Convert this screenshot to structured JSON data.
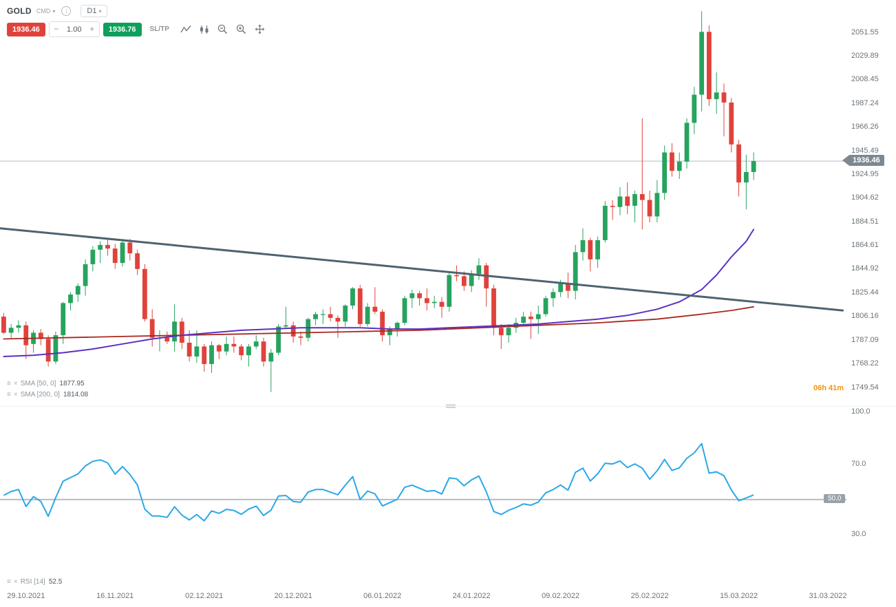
{
  "toolbar": {
    "symbol": "GOLD",
    "market": "CMD",
    "timeframe": "D1",
    "sell_price": "1936.46",
    "buy_price": "1936.76",
    "volume": "1.00",
    "minus": "−",
    "plus": "+",
    "sltp": "SL/TP"
  },
  "legends": {
    "sma50_label": "SMA [50, 0]",
    "sma50_value": "1877.95",
    "sma200_label": "SMA [200, 0]",
    "sma200_value": "1814.08",
    "rsi_label": "RSI [14]",
    "rsi_value": "52.5"
  },
  "countdown": "06h 41m",
  "price_axis": {
    "ticks": [
      "2051.55",
      "2029.89",
      "2008.45",
      "1987.24",
      "1966.26",
      "1945.49",
      "1924.95",
      "1904.62",
      "1884.51",
      "1864.61",
      "1844.92",
      "1825.44",
      "1806.16",
      "1787.09",
      "1768.22",
      "1749.54"
    ],
    "current_price_label": "1936.46"
  },
  "rsi_axis": {
    "ticks": [
      "100.0",
      "70.0",
      "30.0"
    ],
    "mid_badge": "50.0"
  },
  "time_axis": {
    "labels": [
      "29.10.2021",
      "16.11.2021",
      "02.12.2021",
      "20.12.2021",
      "06.01.2022",
      "24.01.2022",
      "09.02.2022",
      "25.02.2022",
      "15.03.2022",
      "31.03.2022"
    ],
    "tick_indices": [
      3,
      15,
      27,
      39,
      51,
      63,
      75,
      87,
      99,
      111
    ]
  },
  "colors": {
    "bull": "#27a35e",
    "bear": "#e0423b",
    "sma50": "#5a31c0",
    "sma200": "#a8271f",
    "trendline": "#4d6370",
    "rsi_line": "#2aa7e8",
    "rsi_mid_line": "#b5bcc1",
    "price_line": "#b4babf",
    "axis_text": "#6a737a",
    "badge_bg": "#7e8890",
    "countdown": "#f5920f"
  },
  "chart_data": {
    "type": "candlestick",
    "symbol": "GOLD",
    "timeframe": "D1",
    "current_price": 1936.46,
    "slots": 114,
    "candles": [
      [
        1806,
        1809,
        1792,
        1793
      ],
      [
        1793,
        1800,
        1788,
        1797
      ],
      [
        1797,
        1803,
        1793,
        1799
      ],
      [
        1799,
        1802,
        1772,
        1783
      ],
      [
        1784,
        1795,
        1777,
        1793
      ],
      [
        1793,
        1796,
        1783,
        1788
      ],
      [
        1788,
        1791,
        1766,
        1770
      ],
      [
        1770,
        1794,
        1768,
        1791
      ],
      [
        1791,
        1818,
        1784,
        1817
      ],
      [
        1817,
        1826,
        1811,
        1824
      ],
      [
        1824,
        1833,
        1818,
        1831
      ],
      [
        1831,
        1853,
        1823,
        1849
      ],
      [
        1849,
        1864,
        1843,
        1861
      ],
      [
        1861,
        1868,
        1850,
        1865
      ],
      [
        1865,
        1870,
        1856,
        1862
      ],
      [
        1862,
        1866,
        1845,
        1850
      ],
      [
        1850,
        1870,
        1847,
        1867
      ],
      [
        1867,
        1870,
        1852,
        1858
      ],
      [
        1858,
        1861,
        1840,
        1845
      ],
      [
        1845,
        1849,
        1802,
        1804
      ],
      [
        1804,
        1812,
        1782,
        1789
      ],
      [
        1789,
        1795,
        1778,
        1789
      ],
      [
        1789,
        1794,
        1784,
        1786
      ],
      [
        1786,
        1816,
        1778,
        1802
      ],
      [
        1802,
        1805,
        1780,
        1785
      ],
      [
        1785,
        1795,
        1770,
        1774
      ],
      [
        1774,
        1795,
        1769,
        1782
      ],
      [
        1782,
        1784,
        1762,
        1768
      ],
      [
        1768,
        1786,
        1761,
        1783
      ],
      [
        1783,
        1784,
        1772,
        1778
      ],
      [
        1778,
        1790,
        1775,
        1784
      ],
      [
        1784,
        1790,
        1777,
        1782
      ],
      [
        1782,
        1784,
        1771,
        1775
      ],
      [
        1775,
        1784,
        1766,
        1782
      ],
      [
        1782,
        1791,
        1780,
        1786
      ],
      [
        1786,
        1789,
        1766,
        1770
      ],
      [
        1770,
        1780,
        1746,
        1777
      ],
      [
        1777,
        1800,
        1775,
        1798
      ],
      [
        1798,
        1814,
        1796,
        1799
      ],
      [
        1799,
        1802,
        1785,
        1790
      ],
      [
        1790,
        1794,
        1783,
        1789
      ],
      [
        1789,
        1805,
        1786,
        1804
      ],
      [
        1804,
        1810,
        1799,
        1808
      ],
      [
        1808,
        1812,
        1800,
        1808
      ],
      [
        1808,
        1814,
        1802,
        1805
      ],
      [
        1805,
        1807,
        1789,
        1802
      ],
      [
        1802,
        1816,
        1798,
        1815
      ],
      [
        1815,
        1830,
        1812,
        1829
      ],
      [
        1829,
        1832,
        1798,
        1800
      ],
      [
        1800,
        1817,
        1798,
        1814
      ],
      [
        1814,
        1830,
        1808,
        1810
      ],
      [
        1810,
        1812,
        1786,
        1791
      ],
      [
        1791,
        1798,
        1783,
        1796
      ],
      [
        1796,
        1802,
        1790,
        1801
      ],
      [
        1801,
        1823,
        1799,
        1821
      ],
      [
        1821,
        1828,
        1813,
        1825
      ],
      [
        1825,
        1827,
        1815,
        1821
      ],
      [
        1821,
        1829,
        1811,
        1817
      ],
      [
        1817,
        1823,
        1813,
        1818
      ],
      [
        1818,
        1822,
        1805,
        1814
      ],
      [
        1814,
        1843,
        1810,
        1840
      ],
      [
        1840,
        1848,
        1835,
        1839
      ],
      [
        1839,
        1843,
        1827,
        1831
      ],
      [
        1831,
        1844,
        1826,
        1841
      ],
      [
        1841,
        1854,
        1836,
        1848
      ],
      [
        1848,
        1850,
        1814,
        1829
      ],
      [
        1829,
        1832,
        1791,
        1797
      ],
      [
        1797,
        1800,
        1780,
        1791
      ],
      [
        1791,
        1800,
        1785,
        1797
      ],
      [
        1797,
        1805,
        1793,
        1801
      ],
      [
        1801,
        1810,
        1798,
        1806
      ],
      [
        1806,
        1810,
        1788,
        1804
      ],
      [
        1804,
        1815,
        1792,
        1808
      ],
      [
        1808,
        1823,
        1806,
        1821
      ],
      [
        1821,
        1829,
        1814,
        1826
      ],
      [
        1826,
        1836,
        1822,
        1833
      ],
      [
        1833,
        1842,
        1821,
        1827
      ],
      [
        1827,
        1865,
        1820,
        1859
      ],
      [
        1859,
        1879,
        1852,
        1869
      ],
      [
        1869,
        1871,
        1843,
        1853
      ],
      [
        1853,
        1872,
        1846,
        1869
      ],
      [
        1869,
        1902,
        1867,
        1898
      ],
      [
        1898,
        1903,
        1886,
        1897
      ],
      [
        1897,
        1914,
        1890,
        1906
      ],
      [
        1906,
        1918,
        1891,
        1898
      ],
      [
        1898,
        1911,
        1884,
        1908
      ],
      [
        1908,
        1974,
        1878,
        1903
      ],
      [
        1903,
        1911,
        1884,
        1889
      ],
      [
        1889,
        1920,
        1884,
        1909
      ],
      [
        1909,
        1950,
        1903,
        1944
      ],
      [
        1944,
        1952,
        1923,
        1928
      ],
      [
        1928,
        1944,
        1921,
        1936
      ],
      [
        1936,
        1974,
        1930,
        1970
      ],
      [
        1970,
        2002,
        1960,
        1995
      ],
      [
        1995,
        2071,
        1980,
        2052
      ],
      [
        2052,
        2058,
        1985,
        1991
      ],
      [
        1991,
        2015,
        1978,
        1997
      ],
      [
        1997,
        2005,
        1958,
        1988
      ],
      [
        1988,
        1992,
        1944,
        1951
      ],
      [
        1951,
        1955,
        1906,
        1918
      ],
      [
        1918,
        1942,
        1895,
        1927
      ],
      [
        1927,
        1944,
        1920,
        1936.46
      ]
    ],
    "overlays": {
      "sma50": [
        [
          0,
          1774
        ],
        [
          4,
          1775
        ],
        [
          8,
          1777
        ],
        [
          12,
          1780
        ],
        [
          16,
          1784
        ],
        [
          20,
          1788
        ],
        [
          24,
          1791
        ],
        [
          28,
          1793
        ],
        [
          32,
          1795
        ],
        [
          36,
          1796
        ],
        [
          40,
          1797
        ],
        [
          44,
          1797
        ],
        [
          48,
          1797
        ],
        [
          52,
          1796
        ],
        [
          56,
          1796
        ],
        [
          60,
          1797
        ],
        [
          64,
          1798
        ],
        [
          68,
          1799
        ],
        [
          72,
          1800
        ],
        [
          76,
          1802
        ],
        [
          80,
          1804
        ],
        [
          84,
          1807
        ],
        [
          88,
          1812
        ],
        [
          91,
          1818
        ],
        [
          94,
          1828
        ],
        [
          96,
          1840
        ],
        [
          98,
          1855
        ],
        [
          100,
          1868
        ],
        [
          101,
          1878
        ]
      ],
      "sma200": [
        [
          0,
          1788
        ],
        [
          8,
          1789
        ],
        [
          16,
          1790
        ],
        [
          24,
          1791
        ],
        [
          32,
          1792
        ],
        [
          40,
          1793
        ],
        [
          48,
          1794
        ],
        [
          56,
          1795
        ],
        [
          64,
          1797
        ],
        [
          72,
          1799
        ],
        [
          80,
          1801
        ],
        [
          88,
          1804
        ],
        [
          94,
          1808
        ],
        [
          98,
          1811
        ],
        [
          101,
          1814
        ]
      ],
      "trendline": {
        "from_index": -0.5,
        "from_price": 1879,
        "to_index": 113,
        "to_price": 1811
      }
    },
    "rsi": {
      "period": 14,
      "last": 52.5,
      "levels": [
        30,
        50,
        70
      ]
    }
  }
}
